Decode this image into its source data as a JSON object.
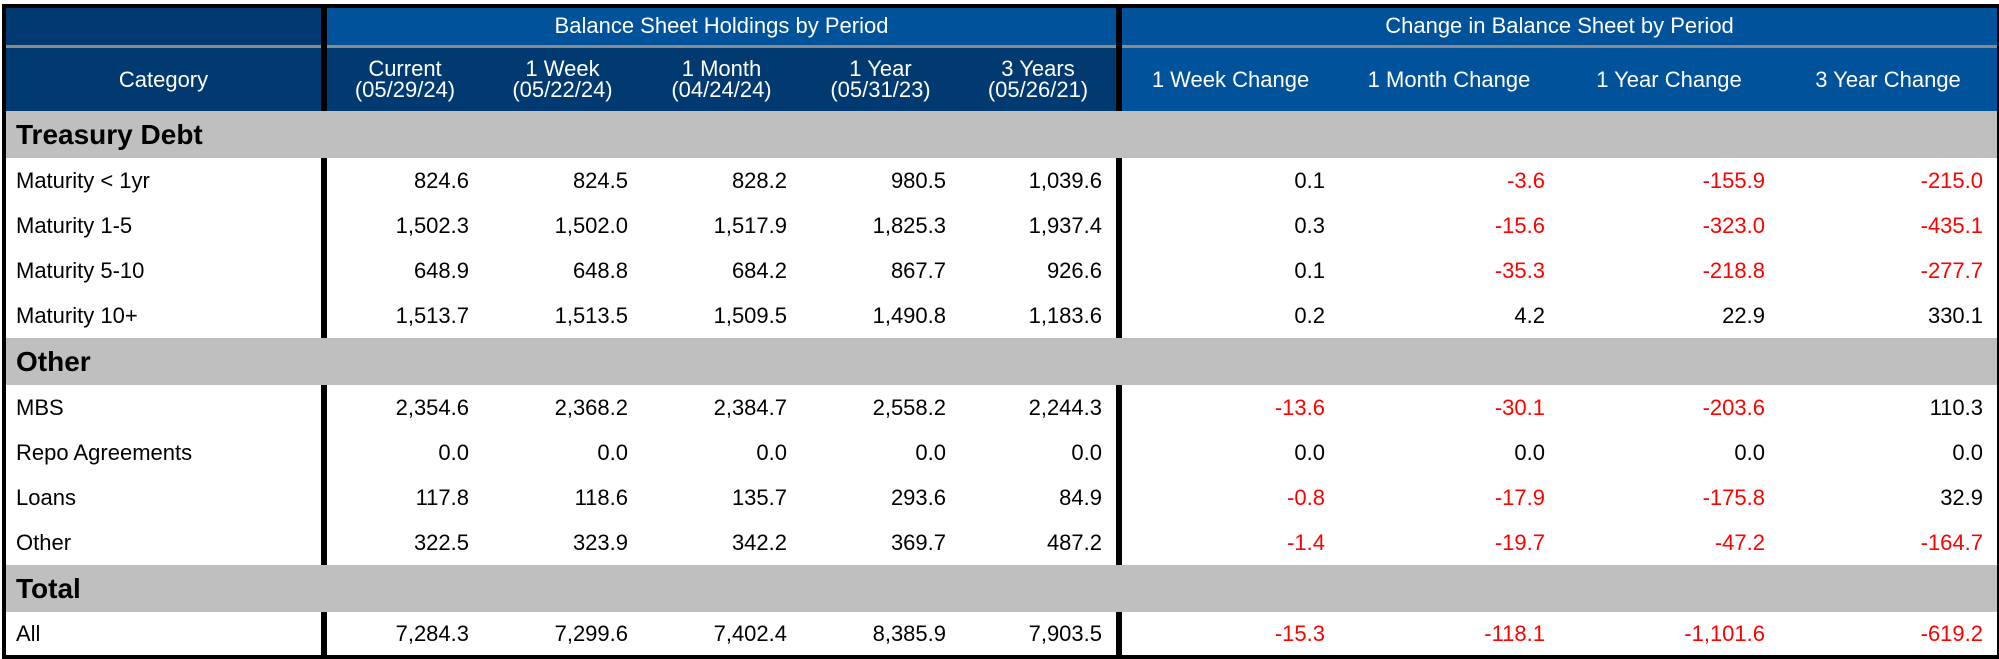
{
  "headers": {
    "group_holdings": "Balance Sheet Holdings by Period",
    "group_change": "Change in Balance Sheet by Period",
    "category": "Category",
    "holdings_columns": [
      {
        "label": "Current",
        "date": "(05/29/24)"
      },
      {
        "label": "1 Week",
        "date": "(05/22/24)"
      },
      {
        "label": "1 Month",
        "date": "(04/24/24)"
      },
      {
        "label": "1 Year",
        "date": "(05/31/23)"
      },
      {
        "label": "3 Years",
        "date": "(05/26/21)"
      }
    ],
    "change_columns": [
      "1 Week Change",
      "1 Month Change",
      "1 Year Change",
      "3 Year Change"
    ]
  },
  "colors": {
    "header_dark": "#003a70",
    "header_blue": "#00529b",
    "section_gray": "#bfbfbf",
    "negative": "#ff0000"
  },
  "chart_data": {
    "type": "table",
    "sections": [
      {
        "title": "Treasury Debt",
        "rows": [
          {
            "category": "Maturity < 1yr",
            "holdings": [
              "824.6",
              "824.5",
              "828.2",
              "980.5",
              "1,039.6"
            ],
            "changes": [
              "0.1",
              "-3.6",
              "-155.9",
              "-215.0"
            ]
          },
          {
            "category": "Maturity 1-5",
            "holdings": [
              "1,502.3",
              "1,502.0",
              "1,517.9",
              "1,825.3",
              "1,937.4"
            ],
            "changes": [
              "0.3",
              "-15.6",
              "-323.0",
              "-435.1"
            ]
          },
          {
            "category": "Maturity 5-10",
            "holdings": [
              "648.9",
              "648.8",
              "684.2",
              "867.7",
              "926.6"
            ],
            "changes": [
              "0.1",
              "-35.3",
              "-218.8",
              "-277.7"
            ]
          },
          {
            "category": "Maturity 10+",
            "holdings": [
              "1,513.7",
              "1,513.5",
              "1,509.5",
              "1,490.8",
              "1,183.6"
            ],
            "changes": [
              "0.2",
              "4.2",
              "22.9",
              "330.1"
            ]
          }
        ]
      },
      {
        "title": "Other",
        "rows": [
          {
            "category": "MBS",
            "holdings": [
              "2,354.6",
              "2,368.2",
              "2,384.7",
              "2,558.2",
              "2,244.3"
            ],
            "changes": [
              "-13.6",
              "-30.1",
              "-203.6",
              "110.3"
            ]
          },
          {
            "category": "Repo Agreements",
            "holdings": [
              "0.0",
              "0.0",
              "0.0",
              "0.0",
              "0.0"
            ],
            "changes": [
              "0.0",
              "0.0",
              "0.0",
              "0.0"
            ]
          },
          {
            "category": "Loans",
            "holdings": [
              "117.8",
              "118.6",
              "135.7",
              "293.6",
              "84.9"
            ],
            "changes": [
              "-0.8",
              "-17.9",
              "-175.8",
              "32.9"
            ]
          },
          {
            "category": "Other",
            "holdings": [
              "322.5",
              "323.9",
              "342.2",
              "369.7",
              "487.2"
            ],
            "changes": [
              "-1.4",
              "-19.7",
              "-47.2",
              "-164.7"
            ]
          }
        ]
      },
      {
        "title": "Total",
        "rows": [
          {
            "category": "All",
            "holdings": [
              "7,284.3",
              "7,299.6",
              "7,402.4",
              "8,385.9",
              "7,903.5"
            ],
            "changes": [
              "-15.3",
              "-118.1",
              "-1,101.6",
              "-619.2"
            ]
          }
        ]
      }
    ]
  }
}
